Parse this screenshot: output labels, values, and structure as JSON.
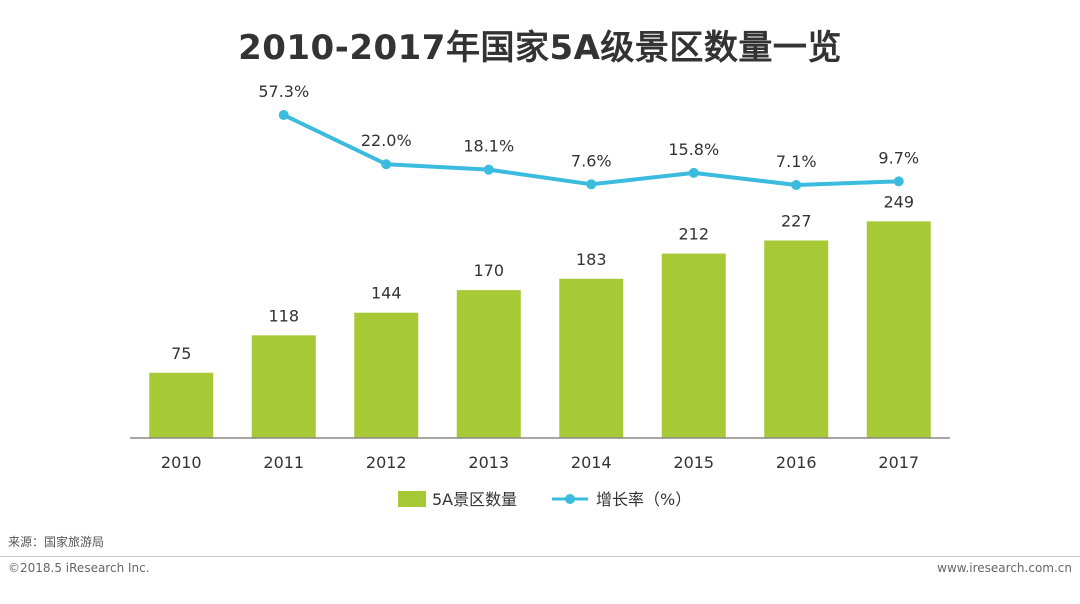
{
  "chart_data": {
    "type": "bar",
    "title": "2010-2017年国家5A级景区数量一览",
    "categories": [
      "2010",
      "2011",
      "2012",
      "2013",
      "2014",
      "2015",
      "2016",
      "2017"
    ],
    "series": [
      {
        "name": "5A景区数量",
        "type": "bar",
        "color": "#a7c936",
        "values": [
          75,
          118,
          144,
          170,
          183,
          212,
          227,
          249
        ],
        "labels": [
          "75",
          "118",
          "144",
          "170",
          "183",
          "212",
          "227",
          "249"
        ]
      },
      {
        "name": "增长率（%）",
        "type": "line",
        "color": "#3bbbde",
        "x": [
          "2011",
          "2012",
          "2013",
          "2014",
          "2015",
          "2016",
          "2017"
        ],
        "values": [
          57.3,
          22.0,
          18.1,
          7.6,
          15.8,
          7.1,
          9.7
        ],
        "labels": [
          "57.3%",
          "22.0%",
          "18.1%",
          "7.6%",
          "15.8%",
          "7.1%",
          "9.7%"
        ]
      }
    ],
    "legend_position": "bottom",
    "grid": false
  },
  "source_text": "来源：国家旅游局",
  "copyright_text": "©2018.5 iResearch Inc.",
  "website_text": "www.iresearch.com.cn"
}
